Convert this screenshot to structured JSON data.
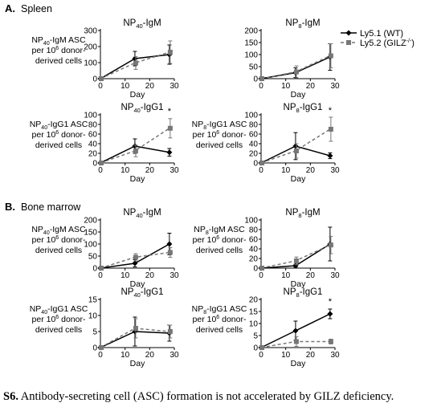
{
  "caption": {
    "label": "S6.",
    "text": " Antibody-secreting cell (ASC) formation is not accelerated by GILZ deficiency."
  },
  "sections": [
    {
      "id": "A",
      "label": "A.",
      "title": "Spleen"
    },
    {
      "id": "B",
      "label": "B.",
      "title": "Bone marrow"
    }
  ],
  "legend": [
    {
      "name": "Ly5.1 (WT)",
      "color": "#000000",
      "dash": "solid",
      "marker": "diamond"
    },
    {
      "name": "Ly5.2 (GILZ",
      "sup": "-/-",
      "suffix": ")",
      "color": "#777777",
      "dash": "dashed",
      "marker": "square"
    }
  ],
  "chart_data": [
    {
      "type": "line",
      "section": "A",
      "title_main": "NP",
      "title_sub": "40",
      "title_suffix": "-IgM",
      "ylabel": [
        "NP40-IgM ASC",
        "per 10^6 donor-",
        "derived cells"
      ],
      "xlabel": "Day",
      "yticks": [
        0,
        100,
        200,
        300
      ],
      "ylim": [
        0,
        300
      ],
      "xticks": [
        0,
        10,
        20,
        30
      ],
      "xlim": [
        0,
        30
      ],
      "x": [
        0,
        14,
        28
      ],
      "series": [
        {
          "name": "Ly5.1 (WT)",
          "values": [
            0,
            125,
            150
          ],
          "err": [
            0,
            45,
            60
          ]
        },
        {
          "name": "Ly5.2 (GILZ-/-)",
          "values": [
            0,
            98,
            165
          ],
          "err": [
            0,
            40,
            70
          ]
        }
      ],
      "significance": []
    },
    {
      "type": "line",
      "section": "A",
      "title_main": "NP",
      "title_sub": "8",
      "title_suffix": "-IgM",
      "ylabel": [],
      "xlabel": "Day",
      "yticks": [
        0,
        50,
        100,
        150,
        200
      ],
      "ylim": [
        0,
        200
      ],
      "xticks": [
        0,
        10,
        20,
        30
      ],
      "xlim": [
        0,
        30
      ],
      "x": [
        0,
        14,
        28
      ],
      "series": [
        {
          "name": "Ly5.1 (WT)",
          "values": [
            0,
            25,
            90
          ],
          "err": [
            0,
            20,
            55
          ]
        },
        {
          "name": "Ly5.2 (GILZ-/-)",
          "values": [
            0,
            28,
            95
          ],
          "err": [
            0,
            25,
            50
          ]
        }
      ],
      "significance": []
    },
    {
      "type": "line",
      "section": "A",
      "title_main": "NP",
      "title_sub": "40",
      "title_suffix": "-IgG1",
      "ylabel": [
        "NP40-IgG1 ASC",
        "per 10^6 donor-",
        "derived cells"
      ],
      "xlabel": "Day",
      "yticks": [
        0,
        20,
        40,
        60,
        80,
        100
      ],
      "ylim": [
        0,
        100
      ],
      "xticks": [
        0,
        10,
        20,
        30
      ],
      "xlim": [
        0,
        30
      ],
      "x": [
        0,
        14,
        28
      ],
      "series": [
        {
          "name": "Ly5.1 (WT)",
          "values": [
            0,
            35,
            22
          ],
          "err": [
            0,
            15,
            8
          ]
        },
        {
          "name": "Ly5.2 (GILZ-/-)",
          "values": [
            0,
            25,
            72
          ],
          "err": [
            0,
            12,
            20
          ]
        }
      ],
      "significance": [
        {
          "x": 28,
          "label": "*"
        }
      ]
    },
    {
      "type": "line",
      "section": "A",
      "title_main": "NP",
      "title_sub": "8",
      "title_suffix": "-IgG1",
      "ylabel": [
        "NP8-IgG1 ASC",
        "per 10^6 donor-",
        "derived cells"
      ],
      "xlabel": "Day",
      "yticks": [
        0,
        20,
        40,
        60,
        80,
        100
      ],
      "ylim": [
        0,
        100
      ],
      "xticks": [
        0,
        10,
        20,
        30
      ],
      "xlim": [
        0,
        30
      ],
      "x": [
        0,
        14,
        28
      ],
      "series": [
        {
          "name": "Ly5.1 (WT)",
          "values": [
            0,
            35,
            15
          ],
          "err": [
            0,
            28,
            6
          ]
        },
        {
          "name": "Ly5.2 (GILZ-/-)",
          "values": [
            0,
            25,
            70
          ],
          "err": [
            0,
            15,
            25
          ]
        }
      ],
      "significance": [
        {
          "x": 28,
          "label": "*"
        }
      ]
    },
    {
      "type": "line",
      "section": "B",
      "title_main": "NP",
      "title_sub": "40",
      "title_suffix": "-IgM",
      "ylabel": [
        "NP40-IgM ASC",
        "per 10^6 donor-",
        "derived cells"
      ],
      "xlabel": "Day",
      "yticks": [
        0,
        50,
        100,
        150,
        200
      ],
      "ylim": [
        0,
        200
      ],
      "xticks": [
        0,
        10,
        20,
        30
      ],
      "xlim": [
        0,
        30
      ],
      "x": [
        0,
        14,
        28
      ],
      "series": [
        {
          "name": "Ly5.1 (WT)",
          "values": [
            0,
            20,
            100
          ],
          "err": [
            0,
            15,
            45
          ]
        },
        {
          "name": "Ly5.2 (GILZ-/-)",
          "values": [
            0,
            45,
            65
          ],
          "err": [
            0,
            15,
            20
          ]
        }
      ],
      "significance": []
    },
    {
      "type": "line",
      "section": "B",
      "title_main": "NP",
      "title_sub": "8",
      "title_suffix": "-IgM",
      "ylabel": [
        "NP8-IgM ASC",
        "per 10^6 donor-",
        "derived cells"
      ],
      "xlabel": "Day",
      "yticks": [
        0,
        20,
        40,
        60,
        80,
        100
      ],
      "ylim": [
        0,
        100
      ],
      "xticks": [
        0,
        10,
        20,
        30
      ],
      "xlim": [
        0,
        30
      ],
      "x": [
        0,
        14,
        28
      ],
      "series": [
        {
          "name": "Ly5.1 (WT)",
          "values": [
            0,
            5,
            50
          ],
          "err": [
            0,
            3,
            35
          ]
        },
        {
          "name": "Ly5.2 (GILZ-/-)",
          "values": [
            0,
            15,
            48
          ],
          "err": [
            0,
            8,
            18
          ]
        }
      ],
      "significance": []
    },
    {
      "type": "line",
      "section": "B",
      "title_main": "NP",
      "title_sub": "40",
      "title_suffix": "-IgG1",
      "ylabel": [
        "NP40-IgG1 ASC",
        "per 10^6 donor-",
        "derived cells"
      ],
      "xlabel": "Day",
      "yticks": [
        0,
        5,
        10,
        15
      ],
      "ylim": [
        0,
        15
      ],
      "xticks": [
        0,
        10,
        20,
        30
      ],
      "xlim": [
        0,
        30
      ],
      "x": [
        0,
        14,
        28
      ],
      "series": [
        {
          "name": "Ly5.1 (WT)",
          "values": [
            0,
            5,
            4.5
          ],
          "err": [
            0,
            4.5,
            2.5
          ]
        },
        {
          "name": "Ly5.2 (GILZ-/-)",
          "values": [
            0,
            6,
            5
          ],
          "err": [
            0,
            3,
            2
          ]
        }
      ],
      "significance": []
    },
    {
      "type": "line",
      "section": "B",
      "title_main": "NP",
      "title_sub": "8",
      "title_suffix": "-IgG1",
      "ylabel": [
        "NP8-IgG1 ASC",
        "per 10^6 donor-",
        "derived cells"
      ],
      "xlabel": "Day",
      "yticks": [
        0,
        5,
        10,
        15,
        20
      ],
      "ylim": [
        0,
        20
      ],
      "xticks": [
        0,
        10,
        20,
        30
      ],
      "xlim": [
        0,
        30
      ],
      "x": [
        0,
        14,
        28
      ],
      "series": [
        {
          "name": "Ly5.1 (WT)",
          "values": [
            0,
            7,
            14
          ],
          "err": [
            0,
            4,
            2
          ]
        },
        {
          "name": "Ly5.2 (GILZ-/-)",
          "values": [
            0,
            2.5,
            2.5
          ],
          "err": [
            0,
            2,
            1
          ]
        }
      ],
      "significance": [
        {
          "x": 28,
          "label": "*"
        }
      ]
    }
  ]
}
